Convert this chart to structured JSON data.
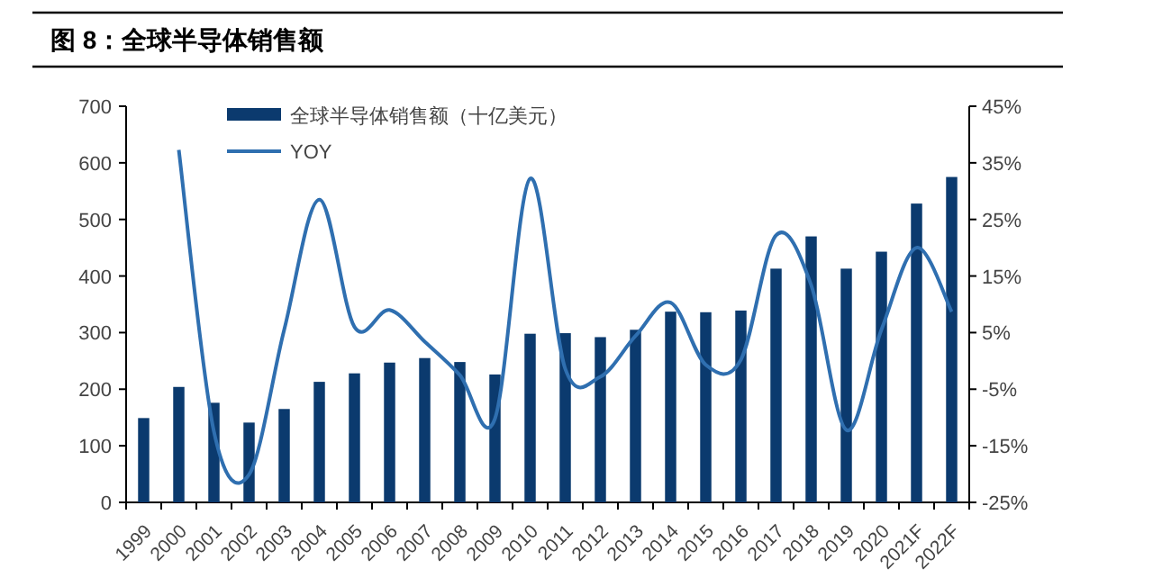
{
  "chart_data": {
    "type": "bar",
    "title": "图 8：全球半导体销售额",
    "categories": [
      "1999",
      "2000",
      "2001",
      "2002",
      "2003",
      "2004",
      "2005",
      "2006",
      "2007",
      "2008",
      "2009",
      "2010",
      "2011",
      "2012",
      "2013",
      "2014",
      "2015",
      "2016",
      "2017",
      "2018",
      "2019",
      "2020",
      "2021F",
      "2022F"
    ],
    "series": [
      {
        "name": "全球半导体销售额（十亿美元）",
        "color": "#0b3a6e",
        "values": [
          149,
          204,
          176,
          141,
          165,
          213,
          228,
          247,
          255,
          248,
          226,
          298,
          299,
          292,
          305,
          337,
          336,
          339,
          413,
          470,
          413,
          443,
          528,
          575
        ]
      },
      {
        "name": "YOY",
        "type": "line",
        "axis": "y2",
        "color": "#2f6fb0",
        "values": [
          null,
          37.3,
          -12.5,
          -20.1,
          5.5,
          28.5,
          6,
          9,
          3.4,
          -2.5,
          -10.2,
          32.2,
          -1.4,
          -2.8,
          4.4,
          10.3,
          -0.7,
          0.2,
          22.2,
          13.4,
          -12.2,
          5.5,
          20,
          8.7
        ]
      }
    ],
    "ylim": [
      0,
      700
    ],
    "yticks": [
      0,
      100,
      200,
      300,
      400,
      500,
      600,
      700
    ],
    "y2lim": [
      -25,
      45
    ],
    "y2ticks": [
      {
        "value": -25,
        "label": "-25%"
      },
      {
        "value": -15,
        "label": "-15%"
      },
      {
        "value": -5,
        "label": "-5%"
      },
      {
        "value": 5,
        "label": "5%"
      },
      {
        "value": 15,
        "label": "15%"
      },
      {
        "value": 25,
        "label": "25%"
      },
      {
        "value": 35,
        "label": "35%"
      },
      {
        "value": 45,
        "label": "45%"
      }
    ],
    "grid": false,
    "legend": "top",
    "marker": "none",
    "line_style": "solid"
  }
}
